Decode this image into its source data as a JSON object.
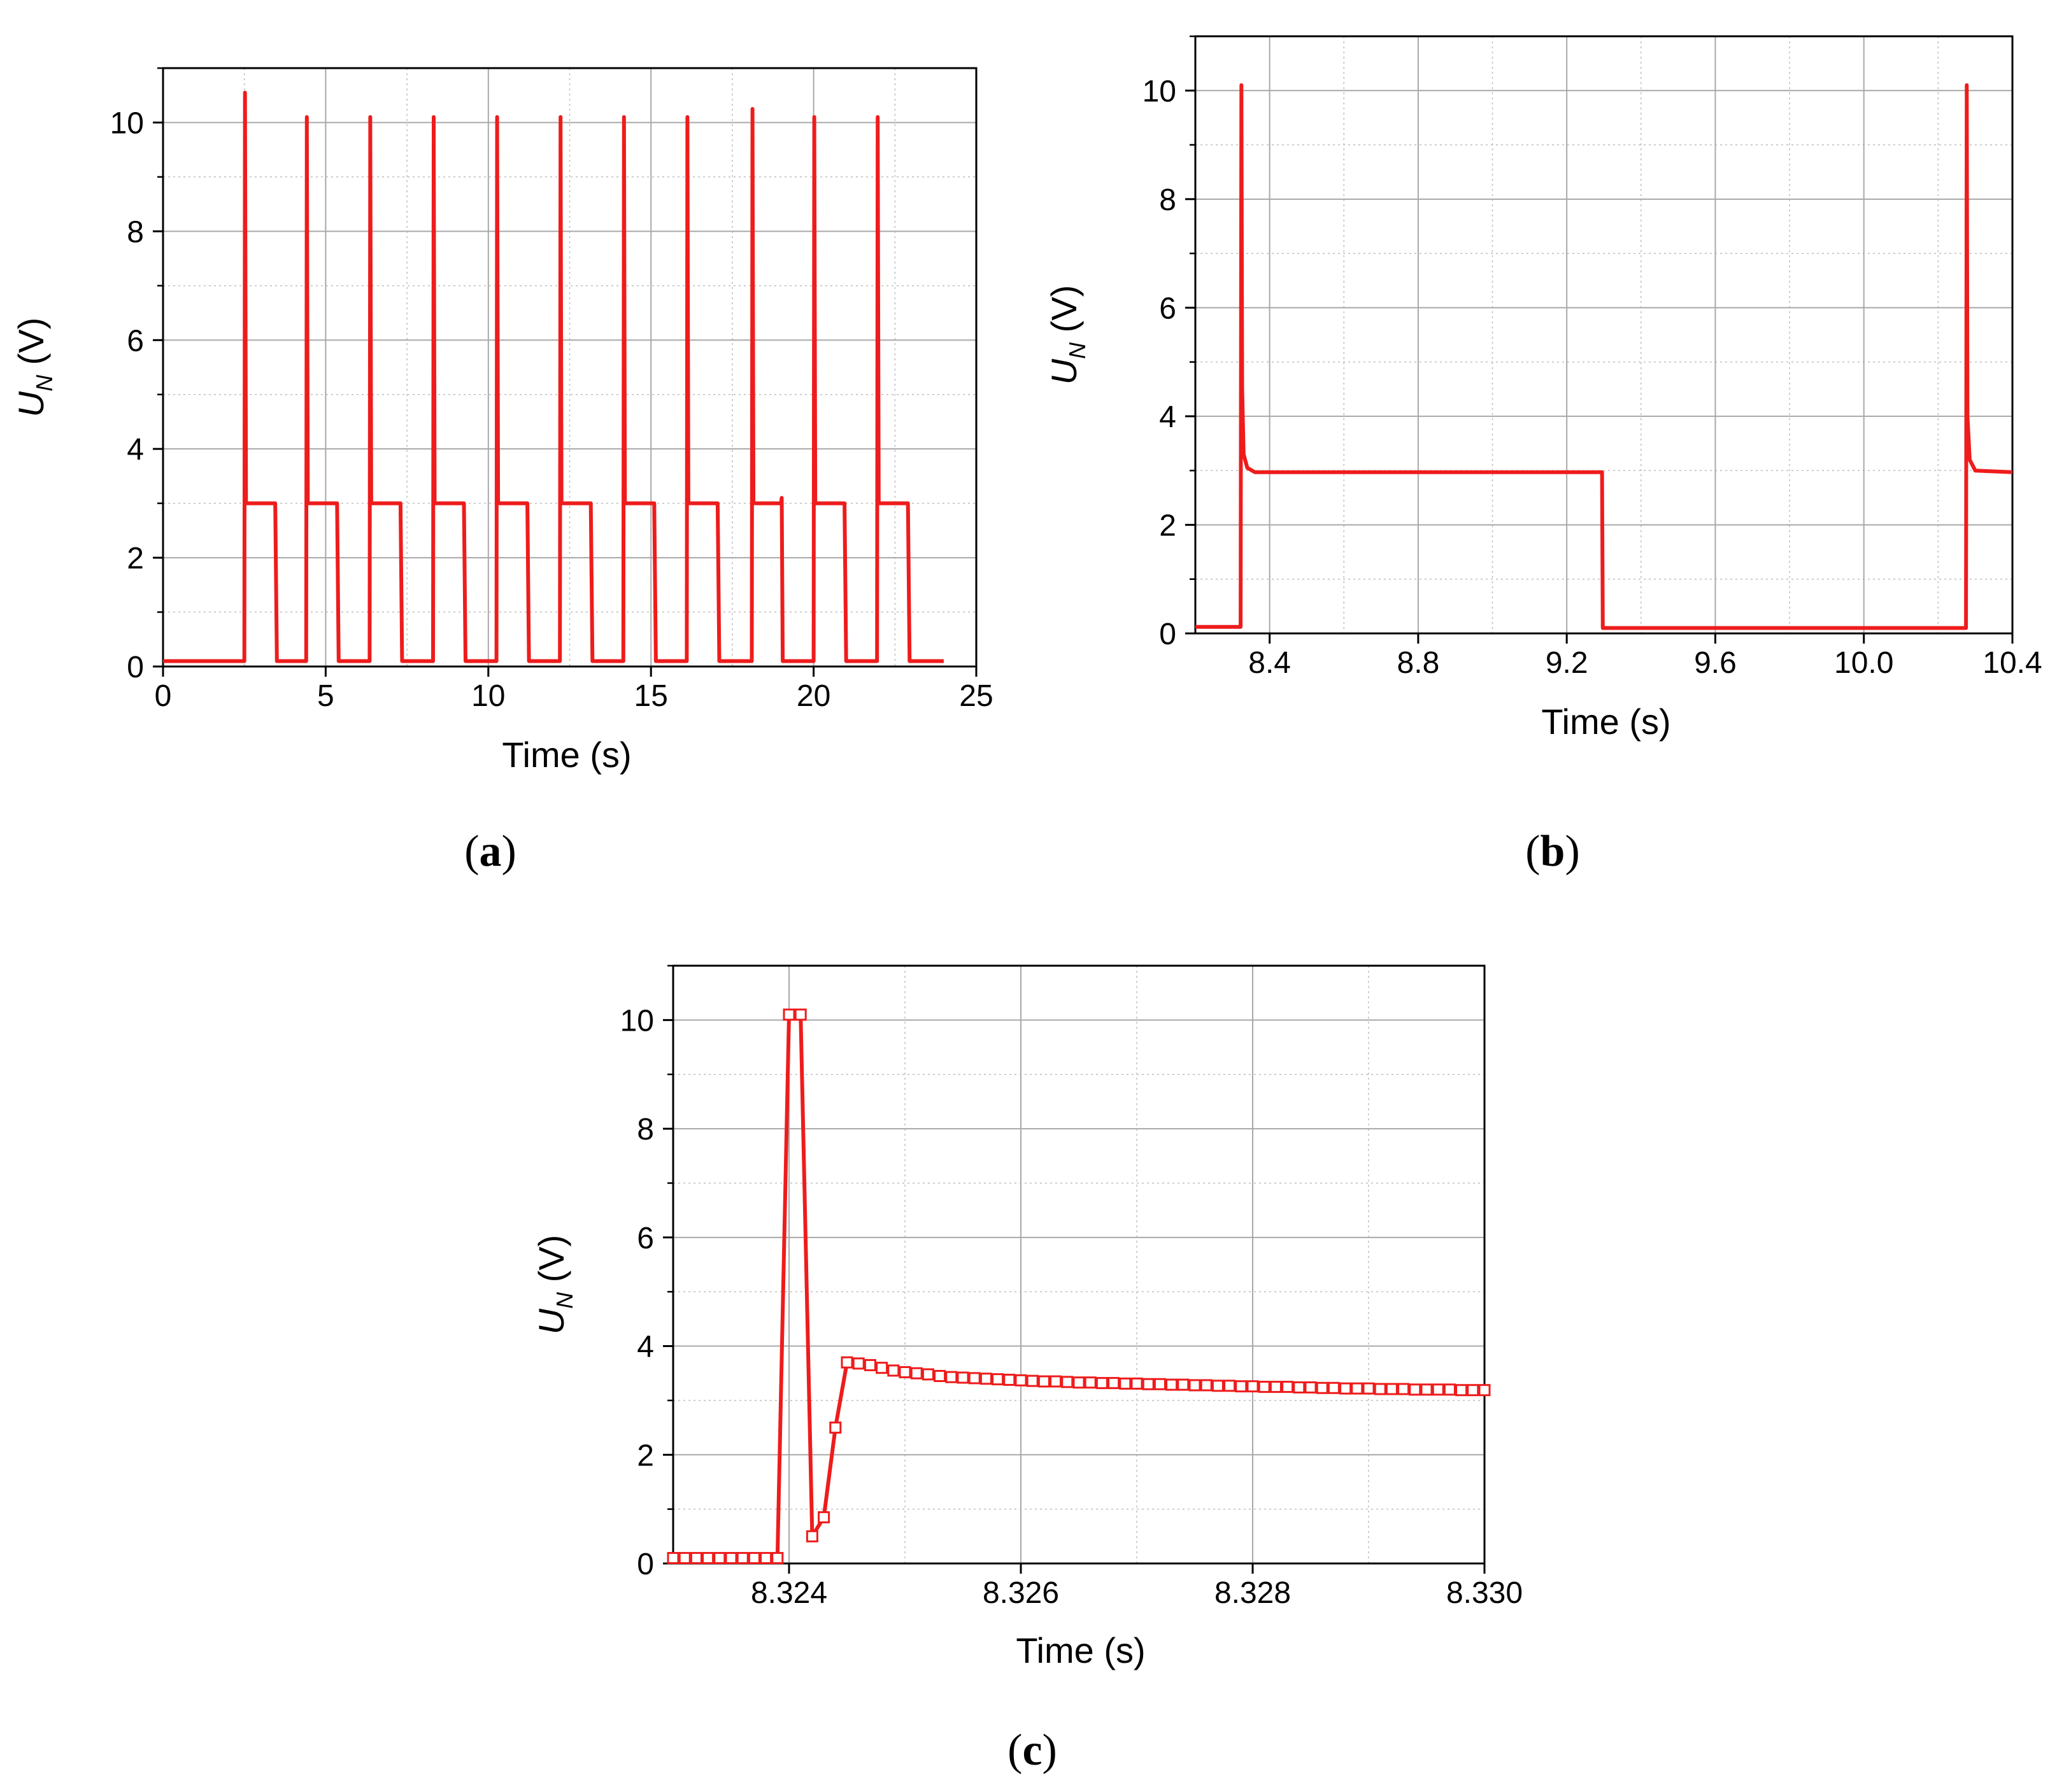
{
  "chart_data": [
    {
      "type": "line",
      "panel_label": "(a)",
      "xlabel": "Time (s)",
      "ylabel": "U_N (V)",
      "ylabel_main": "U",
      "ylabel_sub": "N",
      "ylabel_unit": " (V)",
      "xlim": [
        0,
        25
      ],
      "ylim": [
        0,
        11
      ],
      "xticks": [
        0,
        5,
        10,
        15,
        20,
        25
      ],
      "yticks": [
        0,
        2,
        4,
        6,
        8,
        10
      ],
      "grid": true,
      "line_color": "#ee1c1c",
      "markers": false,
      "series": [
        {
          "points": [
            [
              0.0,
              0.1
            ],
            [
              2.5,
              0.1
            ],
            [
              2.52,
              10.55
            ],
            [
              2.55,
              3.0
            ],
            [
              3.45,
              3.0
            ],
            [
              3.5,
              0.1
            ],
            [
              4.4,
              0.1
            ],
            [
              4.42,
              10.1
            ],
            [
              4.45,
              3.0
            ],
            [
              5.35,
              3.0
            ],
            [
              5.4,
              0.1
            ],
            [
              6.35,
              0.1
            ],
            [
              6.37,
              10.1
            ],
            [
              6.4,
              3.0
            ],
            [
              7.3,
              3.0
            ],
            [
              7.35,
              0.1
            ],
            [
              8.3,
              0.1
            ],
            [
              8.32,
              10.1
            ],
            [
              8.35,
              3.0
            ],
            [
              9.25,
              3.0
            ],
            [
              9.3,
              0.1
            ],
            [
              10.25,
              0.1
            ],
            [
              10.27,
              10.1
            ],
            [
              10.3,
              3.0
            ],
            [
              11.2,
              3.0
            ],
            [
              11.25,
              0.1
            ],
            [
              12.2,
              0.1
            ],
            [
              12.22,
              10.1
            ],
            [
              12.25,
              3.0
            ],
            [
              13.15,
              3.0
            ],
            [
              13.2,
              0.1
            ],
            [
              14.15,
              0.1
            ],
            [
              14.17,
              10.1
            ],
            [
              14.2,
              3.0
            ],
            [
              15.1,
              3.0
            ],
            [
              15.15,
              0.1
            ],
            [
              16.1,
              0.1
            ],
            [
              16.12,
              10.1
            ],
            [
              16.15,
              3.0
            ],
            [
              17.05,
              3.0
            ],
            [
              17.1,
              0.1
            ],
            [
              18.1,
              0.1
            ],
            [
              18.12,
              10.25
            ],
            [
              18.15,
              3.0
            ],
            [
              19.0,
              3.0
            ],
            [
              19.02,
              3.1
            ],
            [
              19.05,
              0.1
            ],
            [
              20.0,
              0.1
            ],
            [
              20.02,
              10.1
            ],
            [
              20.05,
              3.0
            ],
            [
              20.95,
              3.0
            ],
            [
              21.0,
              0.1
            ],
            [
              21.95,
              0.1
            ],
            [
              21.97,
              10.1
            ],
            [
              22.0,
              3.0
            ],
            [
              22.9,
              3.0
            ],
            [
              22.95,
              0.1
            ],
            [
              24.0,
              0.1
            ]
          ]
        }
      ]
    },
    {
      "type": "line",
      "panel_label": "(b)",
      "xlabel": "Time (s)",
      "ylabel": "U_N (V)",
      "ylabel_main": "U",
      "ylabel_sub": "N",
      "ylabel_unit": " (V)",
      "xlim": [
        8.2,
        10.4
      ],
      "ylim": [
        0,
        11
      ],
      "xticks": [
        8.4,
        8.8,
        9.2,
        9.6,
        10.0,
        10.4
      ],
      "xtick_labels": [
        "8.4",
        "8.8",
        "9.2",
        "9.6",
        "10.0",
        "10.4"
      ],
      "yticks": [
        0,
        2,
        4,
        6,
        8,
        10
      ],
      "grid": true,
      "line_color": "#ee1c1c",
      "markers": false,
      "series": [
        {
          "points": [
            [
              8.2,
              0.12
            ],
            [
              8.322,
              0.12
            ],
            [
              8.324,
              10.1
            ],
            [
              8.326,
              4.5
            ],
            [
              8.33,
              3.3
            ],
            [
              8.34,
              3.05
            ],
            [
              8.36,
              2.97
            ],
            [
              9.295,
              2.97
            ],
            [
              9.297,
              0.1
            ],
            [
              10.275,
              0.1
            ],
            [
              10.277,
              10.1
            ],
            [
              10.279,
              4.0
            ],
            [
              10.285,
              3.2
            ],
            [
              10.3,
              3.0
            ],
            [
              10.4,
              2.97
            ]
          ]
        }
      ]
    },
    {
      "type": "line",
      "panel_label": "(c)",
      "xlabel": "Time (s)",
      "ylabel": "U_N (V)",
      "ylabel_main": "U",
      "ylabel_sub": "N",
      "ylabel_unit": " (V)",
      "xlim": [
        8.323,
        8.33
      ],
      "ylim": [
        0,
        11
      ],
      "xticks": [
        8.324,
        8.326,
        8.328,
        8.33
      ],
      "xtick_labels": [
        "8.324",
        "8.326",
        "8.328",
        "8.330"
      ],
      "yticks": [
        0,
        2,
        4,
        6,
        8,
        10
      ],
      "grid": true,
      "line_color": "#ee1c1c",
      "markers": true,
      "marker": "open-square",
      "series": [
        {
          "points": [
            [
              8.323,
              0.1
            ],
            [
              8.3231,
              0.1
            ],
            [
              8.3232,
              0.1
            ],
            [
              8.3233,
              0.1
            ],
            [
              8.3234,
              0.1
            ],
            [
              8.3235,
              0.1
            ],
            [
              8.3236,
              0.1
            ],
            [
              8.3237,
              0.1
            ],
            [
              8.3238,
              0.1
            ],
            [
              8.3239,
              0.1
            ],
            [
              8.324,
              10.1
            ],
            [
              8.3241,
              10.1
            ],
            [
              8.3242,
              0.5
            ],
            [
              8.3243,
              0.85
            ],
            [
              8.3244,
              2.5
            ],
            [
              8.3245,
              3.7
            ],
            [
              8.3246,
              3.68
            ],
            [
              8.3247,
              3.65
            ],
            [
              8.3248,
              3.6
            ],
            [
              8.3249,
              3.55
            ],
            [
              8.325,
              3.52
            ],
            [
              8.3251,
              3.5
            ],
            [
              8.3252,
              3.48
            ],
            [
              8.3253,
              3.45
            ],
            [
              8.3254,
              3.43
            ],
            [
              8.3255,
              3.42
            ],
            [
              8.3256,
              3.41
            ],
            [
              8.3257,
              3.4
            ],
            [
              8.3258,
              3.39
            ],
            [
              8.3259,
              3.38
            ],
            [
              8.326,
              3.37
            ],
            [
              8.3261,
              3.36
            ],
            [
              8.3262,
              3.35
            ],
            [
              8.3263,
              3.35
            ],
            [
              8.3264,
              3.34
            ],
            [
              8.3265,
              3.33
            ],
            [
              8.3266,
              3.33
            ],
            [
              8.3267,
              3.32
            ],
            [
              8.3268,
              3.32
            ],
            [
              8.3269,
              3.31
            ],
            [
              8.327,
              3.31
            ],
            [
              8.3271,
              3.3
            ],
            [
              8.3272,
              3.3
            ],
            [
              8.3273,
              3.29
            ],
            [
              8.3274,
              3.29
            ],
            [
              8.3275,
              3.28
            ],
            [
              8.3276,
              3.28
            ],
            [
              8.3277,
              3.27
            ],
            [
              8.3278,
              3.27
            ],
            [
              8.3279,
              3.26
            ],
            [
              8.328,
              3.26
            ],
            [
              8.3281,
              3.25
            ],
            [
              8.3282,
              3.25
            ],
            [
              8.3283,
              3.25
            ],
            [
              8.3284,
              3.24
            ],
            [
              8.3285,
              3.24
            ],
            [
              8.3286,
              3.23
            ],
            [
              8.3287,
              3.23
            ],
            [
              8.3288,
              3.22
            ],
            [
              8.3289,
              3.22
            ],
            [
              8.329,
              3.22
            ],
            [
              8.3291,
              3.21
            ],
            [
              8.3292,
              3.21
            ],
            [
              8.3293,
              3.21
            ],
            [
              8.3294,
              3.2
            ],
            [
              8.3295,
              3.2
            ],
            [
              8.3296,
              3.2
            ],
            [
              8.3297,
              3.2
            ],
            [
              8.3298,
              3.19
            ],
            [
              8.3299,
              3.19
            ],
            [
              8.33,
              3.19
            ]
          ]
        }
      ]
    }
  ]
}
